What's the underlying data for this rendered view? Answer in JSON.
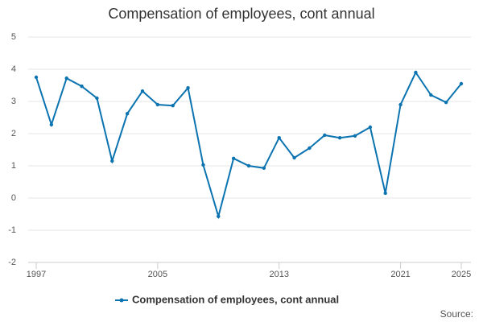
{
  "chart_data": {
    "type": "line",
    "title": "Compensation of employees, cont annual",
    "x": [
      1997,
      1998,
      1999,
      2000,
      2001,
      2002,
      2003,
      2004,
      2005,
      2006,
      2007,
      2008,
      2009,
      2010,
      2011,
      2012,
      2013,
      2014,
      2015,
      2016,
      2017,
      2018,
      2019,
      2020,
      2021,
      2022,
      2023,
      2024,
      2025
    ],
    "series": [
      {
        "name": "Compensation of employees, cont annual",
        "color": "#0a73b0",
        "values": [
          3.75,
          2.28,
          3.72,
          3.47,
          3.1,
          1.15,
          2.62,
          3.32,
          2.9,
          2.87,
          3.42,
          1.03,
          -0.57,
          1.23,
          1.0,
          0.93,
          1.87,
          1.25,
          1.55,
          1.95,
          1.87,
          1.93,
          2.2,
          0.15,
          2.9,
          3.9,
          3.2,
          2.97,
          3.55
        ]
      }
    ],
    "xlim": [
      1997,
      2025
    ],
    "xticks": [
      1997,
      2005,
      2013,
      2021,
      2025
    ],
    "ylim": [
      -2,
      5
    ],
    "yticks": [
      -2,
      -1,
      0,
      1,
      2,
      3,
      4,
      5
    ],
    "grid": true,
    "legend": "bottom",
    "source": "Source:"
  }
}
